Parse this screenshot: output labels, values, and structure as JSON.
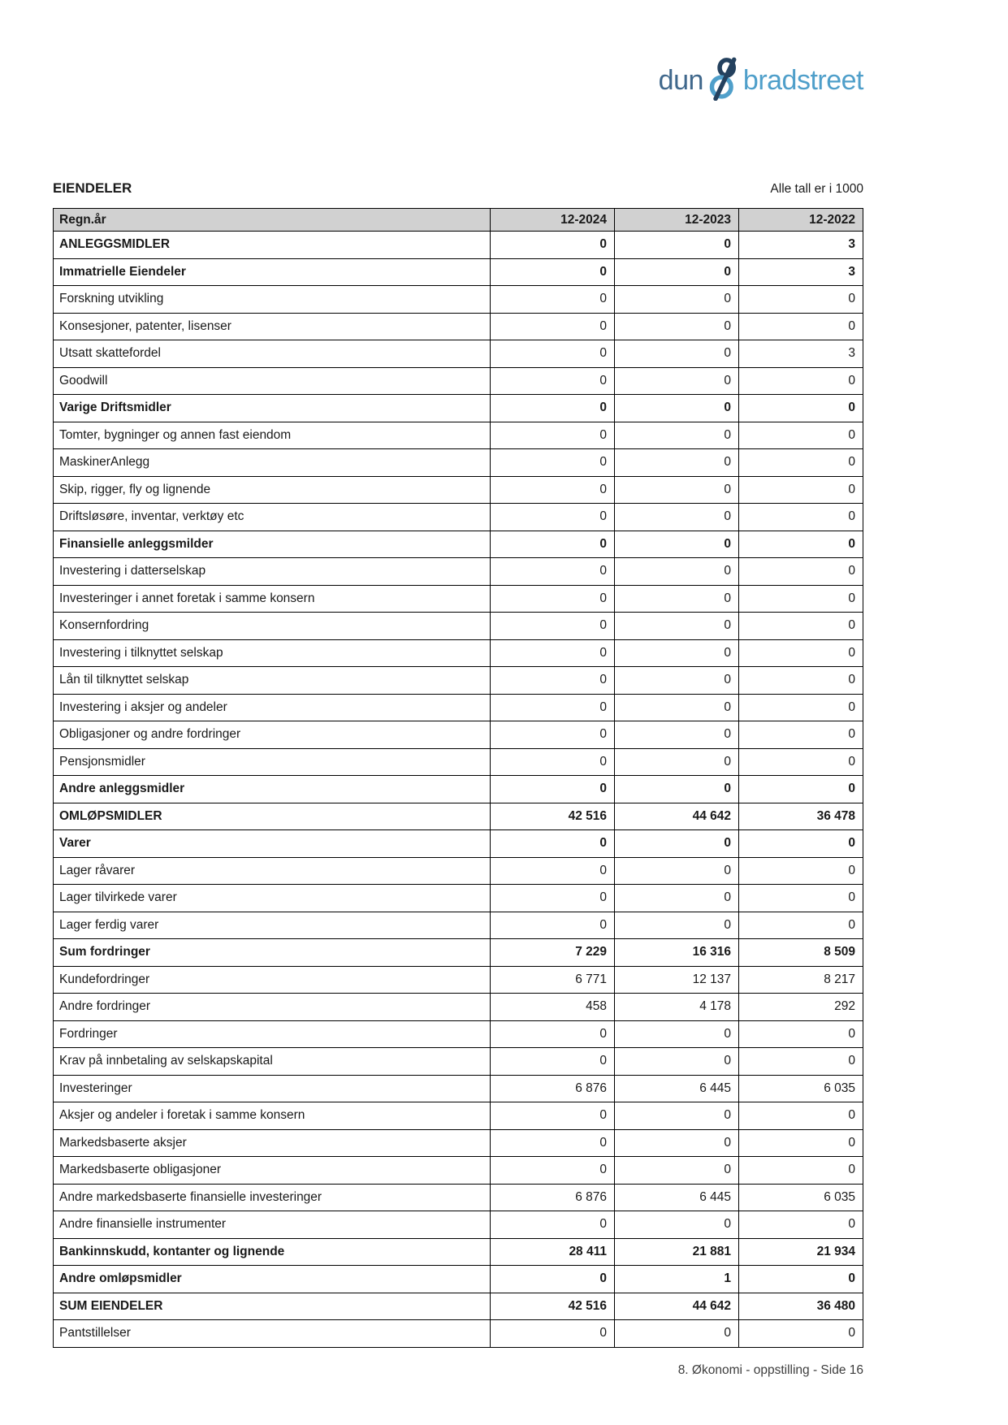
{
  "logo": {
    "part1": "dun",
    "part2": "bradstreet",
    "ampersand_icon": "ampersand-figure-eight",
    "colors": {
      "dun": "#40688c",
      "amp_dark": "#24415e",
      "amp_light": "#4f9fca",
      "bradstreet": "#4f9fca"
    }
  },
  "header": {
    "title": "EIENDELER",
    "note": "Alle tall er i 1000"
  },
  "table": {
    "columns": [
      "Regn.år",
      "12-2024",
      "12-2023",
      "12-2022"
    ],
    "header_bg": "#d1d1d1",
    "border_color": "#000000",
    "rows": [
      {
        "label": "ANLEGGSMIDLER",
        "values": [
          "0",
          "0",
          "3"
        ],
        "bold": true
      },
      {
        "label": "Immatrielle Eiendeler",
        "values": [
          "0",
          "0",
          "3"
        ],
        "bold": true
      },
      {
        "label": "Forskning utvikling",
        "values": [
          "0",
          "0",
          "0"
        ],
        "bold": false
      },
      {
        "label": "Konsesjoner, patenter, lisenser",
        "values": [
          "0",
          "0",
          "0"
        ],
        "bold": false
      },
      {
        "label": "Utsatt skattefordel",
        "values": [
          "0",
          "0",
          "3"
        ],
        "bold": false
      },
      {
        "label": "Goodwill",
        "values": [
          "0",
          "0",
          "0"
        ],
        "bold": false
      },
      {
        "label": "Varige Driftsmidler",
        "values": [
          "0",
          "0",
          "0"
        ],
        "bold": true
      },
      {
        "label": "Tomter, bygninger og annen fast eiendom",
        "values": [
          "0",
          "0",
          "0"
        ],
        "bold": false
      },
      {
        "label": "MaskinerAnlegg",
        "values": [
          "0",
          "0",
          "0"
        ],
        "bold": false
      },
      {
        "label": "Skip, rigger, fly og lignende",
        "values": [
          "0",
          "0",
          "0"
        ],
        "bold": false
      },
      {
        "label": "Driftsløsøre, inventar, verktøy etc",
        "values": [
          "0",
          "0",
          "0"
        ],
        "bold": false
      },
      {
        "label": "Finansielle anleggsmilder",
        "values": [
          "0",
          "0",
          "0"
        ],
        "bold": true
      },
      {
        "label": "Investering i datterselskap",
        "values": [
          "0",
          "0",
          "0"
        ],
        "bold": false
      },
      {
        "label": "Investeringer i annet foretak i samme konsern",
        "values": [
          "0",
          "0",
          "0"
        ],
        "bold": false
      },
      {
        "label": "Konsernfordring",
        "values": [
          "0",
          "0",
          "0"
        ],
        "bold": false
      },
      {
        "label": "Investering i tilknyttet selskap",
        "values": [
          "0",
          "0",
          "0"
        ],
        "bold": false
      },
      {
        "label": "Lån til tilknyttet selskap",
        "values": [
          "0",
          "0",
          "0"
        ],
        "bold": false
      },
      {
        "label": "Investering i aksjer og andeler",
        "values": [
          "0",
          "0",
          "0"
        ],
        "bold": false
      },
      {
        "label": "Obligasjoner og andre fordringer",
        "values": [
          "0",
          "0",
          "0"
        ],
        "bold": false
      },
      {
        "label": "Pensjonsmidler",
        "values": [
          "0",
          "0",
          "0"
        ],
        "bold": false
      },
      {
        "label": "Andre anleggsmidler",
        "values": [
          "0",
          "0",
          "0"
        ],
        "bold": true
      },
      {
        "label": "OMLØPSMIDLER",
        "values": [
          "42 516",
          "44 642",
          "36 478"
        ],
        "bold": true
      },
      {
        "label": "Varer",
        "values": [
          "0",
          "0",
          "0"
        ],
        "bold": true
      },
      {
        "label": "Lager råvarer",
        "values": [
          "0",
          "0",
          "0"
        ],
        "bold": false
      },
      {
        "label": "Lager tilvirkede varer",
        "values": [
          "0",
          "0",
          "0"
        ],
        "bold": false
      },
      {
        "label": "Lager ferdig varer",
        "values": [
          "0",
          "0",
          "0"
        ],
        "bold": false
      },
      {
        "label": "Sum fordringer",
        "values": [
          "7 229",
          "16 316",
          "8 509"
        ],
        "bold": true
      },
      {
        "label": "Kundefordringer",
        "values": [
          "6 771",
          "12 137",
          "8 217"
        ],
        "bold": false
      },
      {
        "label": "Andre fordringer",
        "values": [
          "458",
          "4 178",
          "292"
        ],
        "bold": false
      },
      {
        "label": "Fordringer",
        "values": [
          "0",
          "0",
          "0"
        ],
        "bold": false
      },
      {
        "label": "Krav på innbetaling av selskapskapital",
        "values": [
          "0",
          "0",
          "0"
        ],
        "bold": false
      },
      {
        "label": "Investeringer",
        "values": [
          "6 876",
          "6 445",
          "6 035"
        ],
        "bold": false
      },
      {
        "label": "Aksjer og andeler i foretak i samme konsern",
        "values": [
          "0",
          "0",
          "0"
        ],
        "bold": false
      },
      {
        "label": "Markedsbaserte aksjer",
        "values": [
          "0",
          "0",
          "0"
        ],
        "bold": false
      },
      {
        "label": "Markedsbaserte obligasjoner",
        "values": [
          "0",
          "0",
          "0"
        ],
        "bold": false
      },
      {
        "label": "Andre markedsbaserte finansielle investeringer",
        "values": [
          "6 876",
          "6 445",
          "6 035"
        ],
        "bold": false
      },
      {
        "label": "Andre finansielle instrumenter",
        "values": [
          "0",
          "0",
          "0"
        ],
        "bold": false
      },
      {
        "label": "Bankinnskudd, kontanter og lignende",
        "values": [
          "28 411",
          "21 881",
          "21 934"
        ],
        "bold": true
      },
      {
        "label": "Andre omløpsmidler",
        "values": [
          "0",
          "1",
          "0"
        ],
        "bold": true
      },
      {
        "label": "SUM EIENDELER",
        "values": [
          "42 516",
          "44 642",
          "36 480"
        ],
        "bold": true
      },
      {
        "label": "Pantstillelser",
        "values": [
          "0",
          "0",
          "0"
        ],
        "bold": false
      }
    ]
  },
  "footer": {
    "text": "8. Økonomi - oppstilling - Side 16"
  }
}
